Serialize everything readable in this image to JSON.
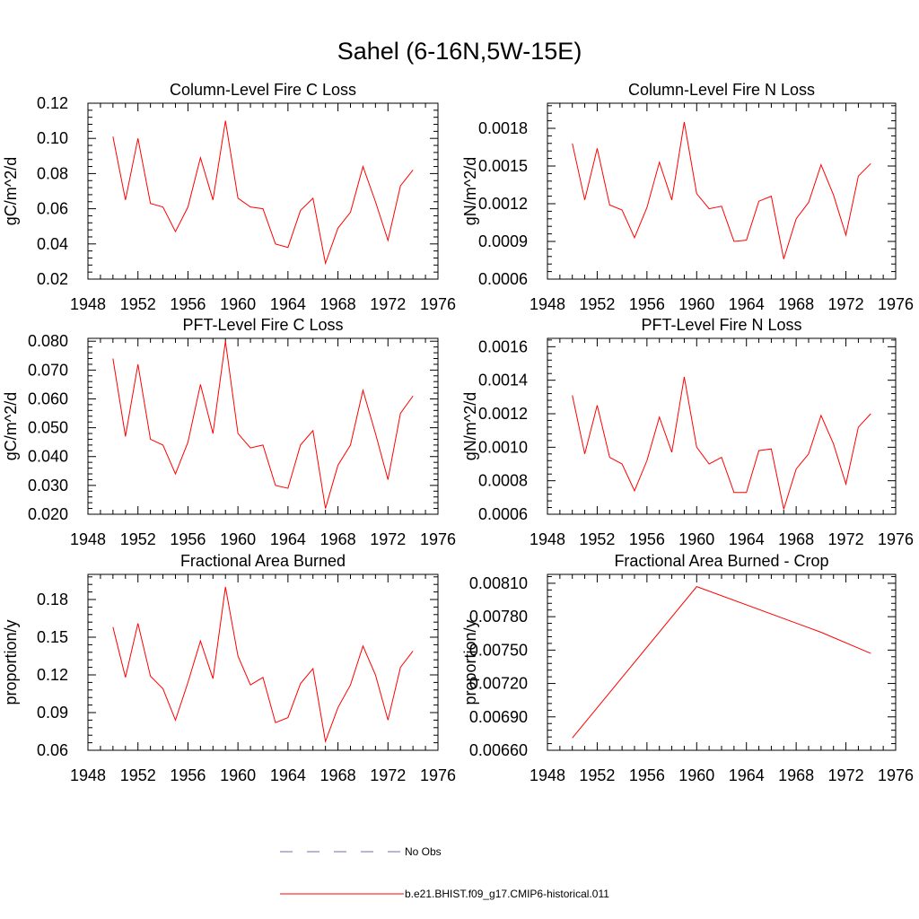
{
  "figure": {
    "title": "Sahel (6-16N,5W-15E)"
  },
  "colors": {
    "model": "#ff0000",
    "obs": "#6f6fa8",
    "axis": "#000000"
  },
  "legend": {
    "placement": "bottom-center",
    "entries": [
      {
        "label": "No Obs",
        "style": "dashed",
        "color": "#6f6fa8"
      },
      {
        "label": "b.e21.BHIST.f09_g17.CMIP6-historical.011",
        "style": "solid",
        "color": "#ff0000"
      }
    ]
  },
  "chart_data": [
    {
      "type": "line",
      "title": "Column-Level Fire C Loss",
      "ylabel": "gC/m^2/d",
      "xlim": [
        1948,
        1976
      ],
      "xticks": [
        1948,
        1952,
        1956,
        1960,
        1964,
        1968,
        1972,
        1976
      ],
      "ylim": [
        0.02,
        0.12
      ],
      "yticks": [
        "0.02",
        "0.04",
        "0.06",
        "0.08",
        "0.10",
        "0.12"
      ],
      "x": [
        1950,
        1951,
        1952,
        1953,
        1954,
        1955,
        1956,
        1957,
        1958,
        1959,
        1960,
        1961,
        1962,
        1963,
        1964,
        1965,
        1966,
        1967,
        1968,
        1969,
        1970,
        1971,
        1972,
        1973,
        1974
      ],
      "series": [
        {
          "name": "b.e21.BHIST.f09_g17.CMIP6-historical.011",
          "values": [
            0.101,
            0.065,
            0.1,
            0.063,
            0.061,
            0.047,
            0.061,
            0.089,
            0.065,
            0.11,
            0.066,
            0.061,
            0.06,
            0.04,
            0.038,
            0.059,
            0.066,
            0.029,
            0.049,
            0.058,
            0.084,
            0.064,
            0.042,
            0.073,
            0.082
          ]
        }
      ]
    },
    {
      "type": "line",
      "title": "Column-Level Fire N Loss",
      "ylabel": "gN/m^2/d",
      "xlim": [
        1948,
        1976
      ],
      "xticks": [
        1948,
        1952,
        1956,
        1960,
        1964,
        1968,
        1972,
        1976
      ],
      "ylim": [
        0.0006,
        0.002
      ],
      "yticks": [
        "0.0006",
        "0.0009",
        "0.0012",
        "0.0015",
        "0.0018"
      ],
      "x": [
        1950,
        1951,
        1952,
        1953,
        1954,
        1955,
        1956,
        1957,
        1958,
        1959,
        1960,
        1961,
        1962,
        1963,
        1964,
        1965,
        1966,
        1967,
        1968,
        1969,
        1970,
        1971,
        1972,
        1973,
        1974
      ],
      "series": [
        {
          "name": "b.e21.BHIST.f09_g17.CMIP6-historical.011",
          "values": [
            0.00168,
            0.00123,
            0.00164,
            0.00119,
            0.00115,
            0.00093,
            0.00117,
            0.00153,
            0.00123,
            0.00185,
            0.00128,
            0.00116,
            0.00118,
            0.0009,
            0.00091,
            0.00122,
            0.00126,
            0.00076,
            0.00108,
            0.00121,
            0.00151,
            0.00127,
            0.00095,
            0.00142,
            0.00152
          ]
        }
      ]
    },
    {
      "type": "line",
      "title": "PFT-Level Fire C Loss",
      "ylabel": "gC/m^2/d",
      "xlim": [
        1948,
        1976
      ],
      "xticks": [
        1948,
        1952,
        1956,
        1960,
        1964,
        1968,
        1972,
        1976
      ],
      "ylim": [
        0.02,
        0.081
      ],
      "yticks": [
        "0.020",
        "0.030",
        "0.040",
        "0.050",
        "0.060",
        "0.070",
        "0.080"
      ],
      "x": [
        1950,
        1951,
        1952,
        1953,
        1954,
        1955,
        1956,
        1957,
        1958,
        1959,
        1960,
        1961,
        1962,
        1963,
        1964,
        1965,
        1966,
        1967,
        1968,
        1969,
        1970,
        1971,
        1972,
        1973,
        1974
      ],
      "series": [
        {
          "name": "b.e21.BHIST.f09_g17.CMIP6-historical.011",
          "values": [
            0.074,
            0.047,
            0.072,
            0.046,
            0.044,
            0.034,
            0.045,
            0.065,
            0.048,
            0.08,
            0.048,
            0.043,
            0.044,
            0.03,
            0.029,
            0.044,
            0.049,
            0.022,
            0.037,
            0.044,
            0.063,
            0.048,
            0.032,
            0.055,
            0.061
          ]
        }
      ]
    },
    {
      "type": "line",
      "title": "PFT-Level Fire N Loss",
      "ylabel": "gN/m^2/d",
      "xlim": [
        1948,
        1976
      ],
      "xticks": [
        1948,
        1952,
        1956,
        1960,
        1964,
        1968,
        1972,
        1976
      ],
      "ylim": [
        0.0006,
        0.00165
      ],
      "yticks": [
        "0.0006",
        "0.0008",
        "0.0010",
        "0.0012",
        "0.0014",
        "0.0016"
      ],
      "x": [
        1950,
        1951,
        1952,
        1953,
        1954,
        1955,
        1956,
        1957,
        1958,
        1959,
        1960,
        1961,
        1962,
        1963,
        1964,
        1965,
        1966,
        1967,
        1968,
        1969,
        1970,
        1971,
        1972,
        1973,
        1974
      ],
      "series": [
        {
          "name": "b.e21.BHIST.f09_g17.CMIP6-historical.011",
          "values": [
            0.00131,
            0.00096,
            0.00125,
            0.00094,
            0.0009,
            0.00074,
            0.00092,
            0.00118,
            0.00097,
            0.00142,
            0.001,
            0.0009,
            0.00094,
            0.00073,
            0.00073,
            0.00098,
            0.00099,
            0.00063,
            0.00087,
            0.00096,
            0.00119,
            0.00102,
            0.00078,
            0.00112,
            0.0012
          ]
        }
      ]
    },
    {
      "type": "line",
      "title": "Fractional Area Burned",
      "ylabel": "proportion/y",
      "xlim": [
        1948,
        1976
      ],
      "xticks": [
        1948,
        1952,
        1956,
        1960,
        1964,
        1968,
        1972,
        1976
      ],
      "ylim": [
        0.06,
        0.2
      ],
      "yticks": [
        "0.06",
        "0.09",
        "0.12",
        "0.15",
        "0.18"
      ],
      "x": [
        1950,
        1951,
        1952,
        1953,
        1954,
        1955,
        1956,
        1957,
        1958,
        1959,
        1960,
        1961,
        1962,
        1963,
        1964,
        1965,
        1966,
        1967,
        1968,
        1969,
        1970,
        1971,
        1972,
        1973,
        1974
      ],
      "series": [
        {
          "name": "b.e21.BHIST.f09_g17.CMIP6-historical.011",
          "values": [
            0.158,
            0.118,
            0.161,
            0.119,
            0.109,
            0.084,
            0.114,
            0.147,
            0.117,
            0.19,
            0.135,
            0.112,
            0.118,
            0.082,
            0.086,
            0.113,
            0.125,
            0.067,
            0.094,
            0.112,
            0.143,
            0.12,
            0.084,
            0.126,
            0.139
          ]
        }
      ]
    },
    {
      "type": "line",
      "title": "Fractional Area Burned - Crop",
      "ylabel": "proportion/y",
      "xlim": [
        1948,
        1976
      ],
      "xticks": [
        1948,
        1952,
        1956,
        1960,
        1964,
        1968,
        1972,
        1976
      ],
      "ylim": [
        0.0066,
        0.00818
      ],
      "yticks": [
        "0.00660",
        "0.00690",
        "0.00720",
        "0.00750",
        "0.00780",
        "0.00810"
      ],
      "x": [
        1950,
        1960,
        1970,
        1974
      ],
      "series": [
        {
          "name": "b.e21.BHIST.f09_g17.CMIP6-historical.011",
          "values": [
            0.00671,
            0.00807,
            0.00766,
            0.00747
          ]
        }
      ]
    }
  ]
}
